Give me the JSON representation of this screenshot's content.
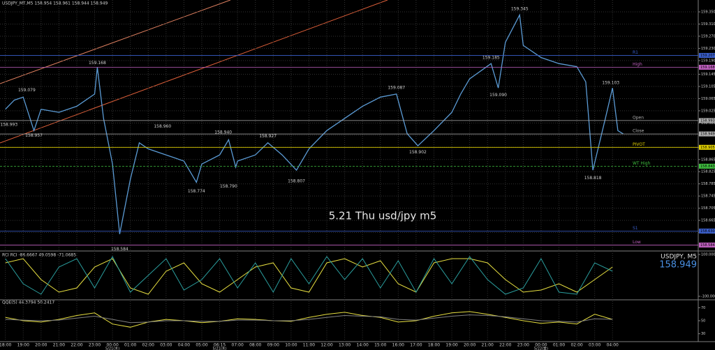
{
  "chart_data": [
    {
      "type": "line",
      "title": "USDJPY_MT,M5 158.954 158.961 158.944 158.949",
      "annotation": "5.21 Thu usd/jpy m5",
      "xlim": [
        -0.3,
        38.8
      ],
      "ylim": [
        158.569,
        159.389
      ],
      "grid": true,
      "yticks": [
        {
          "value": 159.35,
          "label": "159.350"
        },
        {
          "value": 159.31,
          "label": "159.310"
        },
        {
          "value": 159.27,
          "label": "159.270"
        },
        {
          "value": 159.23,
          "label": "159.230"
        },
        {
          "value": 159.19,
          "label": "159.190"
        },
        159.145,
        159.105,
        159.065,
        159.025,
        158.985,
        158.945,
        158.905,
        158.865,
        158.825,
        158.785,
        158.745,
        158.705,
        158.665,
        158.625
      ],
      "xticks": [
        {
          "value": 0,
          "label": "18:00"
        },
        {
          "value": 1,
          "label": "19:00"
        },
        {
          "value": 2,
          "label": "20:00"
        },
        {
          "value": 3,
          "label": "21:00"
        },
        {
          "value": 4,
          "label": "22:00"
        },
        {
          "value": 5,
          "label": "23:00"
        },
        {
          "value": 6,
          "label": "00:00"
        },
        {
          "value": 7,
          "label": "01:00"
        },
        {
          "value": 8,
          "label": "02:00"
        },
        {
          "value": 9,
          "label": "03:00"
        },
        {
          "value": 10,
          "label": "04:00"
        },
        {
          "value": 11,
          "label": "05:00"
        },
        {
          "value": 12,
          "label": "06:15"
        },
        {
          "value": 13,
          "label": "07:00"
        },
        {
          "value": 14,
          "label": "08:00"
        },
        {
          "value": 15,
          "label": "09:00"
        },
        {
          "value": 16,
          "label": "10:00"
        },
        {
          "value": 17,
          "label": "11:00"
        },
        {
          "value": 18,
          "label": "12:00"
        },
        {
          "value": 19,
          "label": "13:00"
        },
        {
          "value": 20,
          "label": "14:00"
        },
        {
          "value": 21,
          "label": "15:00"
        },
        {
          "value": 22,
          "label": "16:00"
        },
        {
          "value": 23,
          "label": "17:00"
        },
        {
          "value": 24,
          "label": "18:00"
        },
        {
          "value": 25,
          "label": "19:00"
        },
        {
          "value": 26,
          "label": "20:00"
        },
        {
          "value": 27,
          "label": "21:00"
        },
        {
          "value": 28,
          "label": "22:00"
        },
        {
          "value": 29,
          "label": "23:00"
        },
        {
          "value": 30,
          "label": "00:00"
        },
        {
          "value": 31,
          "label": "01:00"
        },
        {
          "value": 32,
          "label": "02:00"
        },
        {
          "value": 33,
          "label": "03:00"
        },
        {
          "value": 34,
          "label": "04:00"
        }
      ],
      "date_labels": [
        {
          "value": 6,
          "label": "5/21(木)"
        },
        {
          "value": 12,
          "label": "5/21(木)"
        },
        {
          "value": 30,
          "label": "5/22(金)"
        }
      ],
      "series": [
        {
          "color": "#5b9bd5",
          "x": [
            0,
            0.5,
            1,
            1.6,
            2,
            3,
            4,
            5,
            5.15,
            5.5,
            6,
            6.4,
            7,
            7.5,
            8,
            9,
            10,
            10.7,
            11,
            12,
            12.5,
            12.9,
            13,
            14,
            14.7,
            15.5,
            16.3,
            17,
            18,
            19,
            20,
            21,
            21.9,
            22.5,
            23.1,
            24,
            25,
            25.5,
            26,
            27.2,
            27.6,
            28,
            28.8,
            29,
            30,
            31,
            32,
            32.5,
            32.9,
            33.6,
            34,
            34.3,
            34.6
          ],
          "values": [
            159.03,
            159.06,
            159.07,
            158.96,
            159.03,
            159.02,
            159.04,
            159.08,
            159.168,
            159.0,
            158.85,
            158.62,
            158.8,
            158.92,
            158.9,
            158.88,
            158.86,
            158.79,
            158.85,
            158.88,
            158.93,
            158.84,
            158.86,
            158.88,
            158.92,
            158.88,
            158.83,
            158.9,
            158.96,
            159.0,
            159.04,
            159.07,
            159.08,
            158.95,
            158.91,
            158.96,
            159.02,
            159.08,
            159.13,
            159.18,
            159.1,
            159.25,
            159.34,
            159.24,
            159.2,
            159.18,
            159.17,
            159.12,
            158.83,
            159.0,
            159.1,
            158.96,
            158.949
          ]
        }
      ],
      "annotations": [
        {
          "x": 1.2,
          "value": 159.079,
          "label": "159.079"
        },
        {
          "x": 1.6,
          "value": 158.957,
          "label": "158.957"
        },
        {
          "x": 0.2,
          "value": 158.993,
          "label": "158.993"
        },
        {
          "x": 5.15,
          "value": 159.168,
          "label": "159.168"
        },
        {
          "x": 6.4,
          "value": 158.584,
          "label": "158.584"
        },
        {
          "x": 8.8,
          "value": 158.96,
          "label": "158.960"
        },
        {
          "x": 10.7,
          "value": 158.774,
          "label": "158.774"
        },
        {
          "x": 12.2,
          "value": 158.94,
          "label": "158.940"
        },
        {
          "x": 12.5,
          "value": 158.79,
          "label": "158.790"
        },
        {
          "x": 14.7,
          "value": 158.927,
          "label": "158.927"
        },
        {
          "x": 16.3,
          "value": 158.807,
          "label": "158.807"
        },
        {
          "x": 21.9,
          "value": 159.087,
          "label": "159.087"
        },
        {
          "x": 23.1,
          "value": 158.902,
          "label": "158.902"
        },
        {
          "x": 27.2,
          "value": 159.185,
          "label": "159.185"
        },
        {
          "x": 27.6,
          "value": 159.09,
          "label": "159.090"
        },
        {
          "x": 28.8,
          "value": 159.345,
          "label": "159.345"
        },
        {
          "x": 32.9,
          "value": 158.818,
          "label": "158.818"
        },
        {
          "x": 33.9,
          "value": 159.103,
          "label": "159.103"
        }
      ],
      "levels": [
        {
          "name": "R1",
          "value": 159.207,
          "label": "159.207",
          "color": "#3a5fcd",
          "dash": false
        },
        {
          "name": "High",
          "value": 159.168,
          "label": "159.168",
          "color": "#c060c0",
          "dash": false
        },
        {
          "name": "Open",
          "value": 158.993,
          "label": "158.993",
          "color": "#b0b0b0",
          "dash": false
        },
        {
          "name": "Close",
          "value": 158.949,
          "label": "158.949",
          "color": "#b0b0b0",
          "dash": false
        },
        {
          "name": "PIVOT",
          "value": 158.905,
          "label": "158.905",
          "color": "#e0d000",
          "dash": false
        },
        {
          "name": "WT High",
          "value": 158.843,
          "label": "158.843",
          "color": "#40c040",
          "dash": true
        },
        {
          "name": "S1",
          "value": 158.63,
          "label": "158.630",
          "color": "#3a5fcd",
          "dash": false
        },
        {
          "name": "Low",
          "value": 158.584,
          "label": "158.584",
          "color": "#c060c0",
          "dash": false
        }
      ]
    },
    {
      "type": "line",
      "title": "RCI RCI -86.6667 49.0598 -71.0685",
      "symbol": "USDJPY, M5",
      "last_price": 158.949,
      "ylim": [
        -110,
        110
      ],
      "yticks": [
        {
          "value": 100,
          "label": "100.0000"
        },
        {
          "value": -100,
          "label": "-100.0000"
        }
      ],
      "x": [
        0,
        1,
        2,
        3,
        4,
        5,
        6,
        7,
        8,
        9,
        10,
        11,
        12,
        13,
        14,
        15,
        16,
        17,
        18,
        19,
        20,
        21,
        22,
        23,
        24,
        25,
        26,
        27,
        28,
        29,
        30,
        31,
        32,
        33,
        34
      ],
      "series": [
        {
          "color": "#e8e040",
          "values": [
            60,
            80,
            -20,
            -80,
            -60,
            40,
            80,
            -60,
            -90,
            20,
            60,
            -40,
            -80,
            -20,
            40,
            60,
            -60,
            -80,
            60,
            80,
            40,
            70,
            -40,
            -80,
            60,
            80,
            80,
            60,
            -20,
            -80,
            -70,
            -40,
            -80,
            -20,
            40
          ]
        },
        {
          "color": "#2a9d9d",
          "values": [
            80,
            -40,
            -90,
            40,
            80,
            -60,
            90,
            -80,
            0,
            80,
            -70,
            -20,
            80,
            -60,
            60,
            -80,
            80,
            -40,
            90,
            -20,
            80,
            -60,
            70,
            -80,
            80,
            -40,
            90,
            -20,
            -90,
            -60,
            80,
            -80,
            -90,
            60,
            20
          ]
        }
      ]
    },
    {
      "type": "line",
      "title": "QQE(5) 44.3794 50.2417",
      "ylim": [
        20,
        80
      ],
      "yticks": [
        70,
        50,
        30
      ],
      "x": [
        0,
        1,
        2,
        3,
        4,
        5,
        6,
        7,
        8,
        9,
        10,
        11,
        12,
        13,
        14,
        15,
        16,
        17,
        18,
        19,
        20,
        21,
        22,
        23,
        24,
        25,
        26,
        27,
        28,
        29,
        30,
        31,
        32,
        33,
        34
      ],
      "series": [
        {
          "color": "#e8e040",
          "values": [
            55,
            50,
            48,
            52,
            58,
            62,
            45,
            40,
            48,
            52,
            50,
            47,
            49,
            53,
            52,
            50,
            49,
            55,
            60,
            63,
            58,
            55,
            48,
            50,
            57,
            62,
            64,
            60,
            55,
            50,
            46,
            48,
            45,
            60,
            52
          ]
        },
        {
          "color": "#808080",
          "values": [
            52,
            51,
            50,
            51,
            54,
            57,
            52,
            47,
            48,
            50,
            50,
            49,
            49,
            51,
            51,
            50,
            50,
            52,
            55,
            58,
            57,
            56,
            52,
            51,
            54,
            57,
            59,
            58,
            56,
            53,
            50,
            49,
            48,
            53,
            52
          ]
        }
      ]
    }
  ]
}
